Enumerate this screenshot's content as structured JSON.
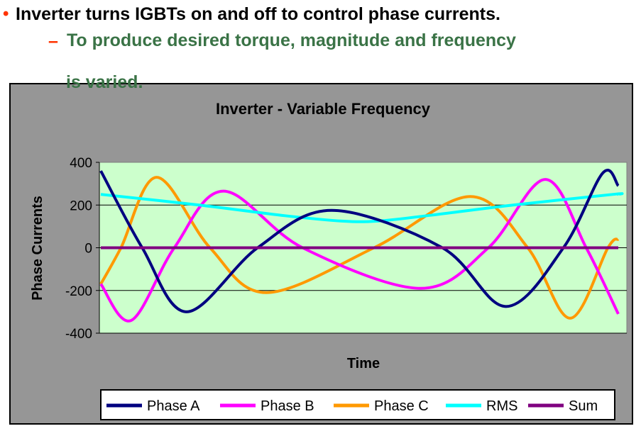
{
  "slide": {
    "bullet": "•",
    "line1": "Inverter turns IGBTs on and off to control phase currents.",
    "dash": "–",
    "line2": "To produce desired torque, magnitude and frequency",
    "line3": "is varied.",
    "colors": {
      "bullet": "#ff3300",
      "subtext": "#3a7346",
      "text": "#000000"
    }
  },
  "chart_data": {
    "type": "line",
    "title": "Inverter - Variable Frequency",
    "xlabel": "Time",
    "ylabel": "Phase Currents",
    "ylim": [
      -400,
      400
    ],
    "yticks": [
      "400",
      "200",
      "0",
      "-200",
      "-400"
    ],
    "ytick_values": [
      400,
      200,
      0,
      -200,
      -400
    ],
    "grid": "horizontal",
    "plot_background": "#ccffcc",
    "chart_background": "#969696",
    "legend_placement": "bottom",
    "series": [
      {
        "name": "Phase A",
        "color": "#000080",
        "points": [
          [
            0,
            360
          ],
          [
            8,
            0
          ],
          [
            16.6,
            -300
          ],
          [
            30.3,
            0
          ],
          [
            44.6,
            175
          ],
          [
            66,
            0
          ],
          [
            78.3,
            -275
          ],
          [
            89.4,
            0
          ],
          [
            97,
            350
          ],
          [
            100,
            290
          ]
        ]
      },
      {
        "name": "Phase B",
        "color": "#ff00ff",
        "points": [
          [
            0,
            -170
          ],
          [
            5.9,
            -340
          ],
          [
            14.2,
            0
          ],
          [
            23.7,
            265
          ],
          [
            39,
            0
          ],
          [
            61.8,
            -190
          ],
          [
            74.9,
            0
          ],
          [
            85.9,
            320
          ],
          [
            93.8,
            0
          ],
          [
            100,
            -310
          ]
        ]
      },
      {
        "name": "Phase C",
        "color": "#ff9900",
        "points": [
          [
            0,
            -170
          ],
          [
            3.9,
            0
          ],
          [
            10.8,
            330
          ],
          [
            21.1,
            0
          ],
          [
            32,
            -210
          ],
          [
            52.8,
            0
          ],
          [
            71.4,
            240
          ],
          [
            82.5,
            0
          ],
          [
            90.7,
            -330
          ],
          [
            98,
            0
          ],
          [
            100,
            40
          ]
        ]
      },
      {
        "name": "RMS",
        "color": "#00ffff",
        "points": [
          [
            0,
            250
          ],
          [
            19,
            200
          ],
          [
            35.6,
            150
          ],
          [
            46.6,
            125
          ],
          [
            53.5,
            125
          ],
          [
            63,
            150
          ],
          [
            79.7,
            200
          ],
          [
            99,
            250
          ],
          [
            100,
            250
          ]
        ]
      },
      {
        "name": "Sum",
        "color": "#800080",
        "points": [
          [
            0,
            0
          ],
          [
            100,
            0
          ]
        ]
      }
    ]
  }
}
